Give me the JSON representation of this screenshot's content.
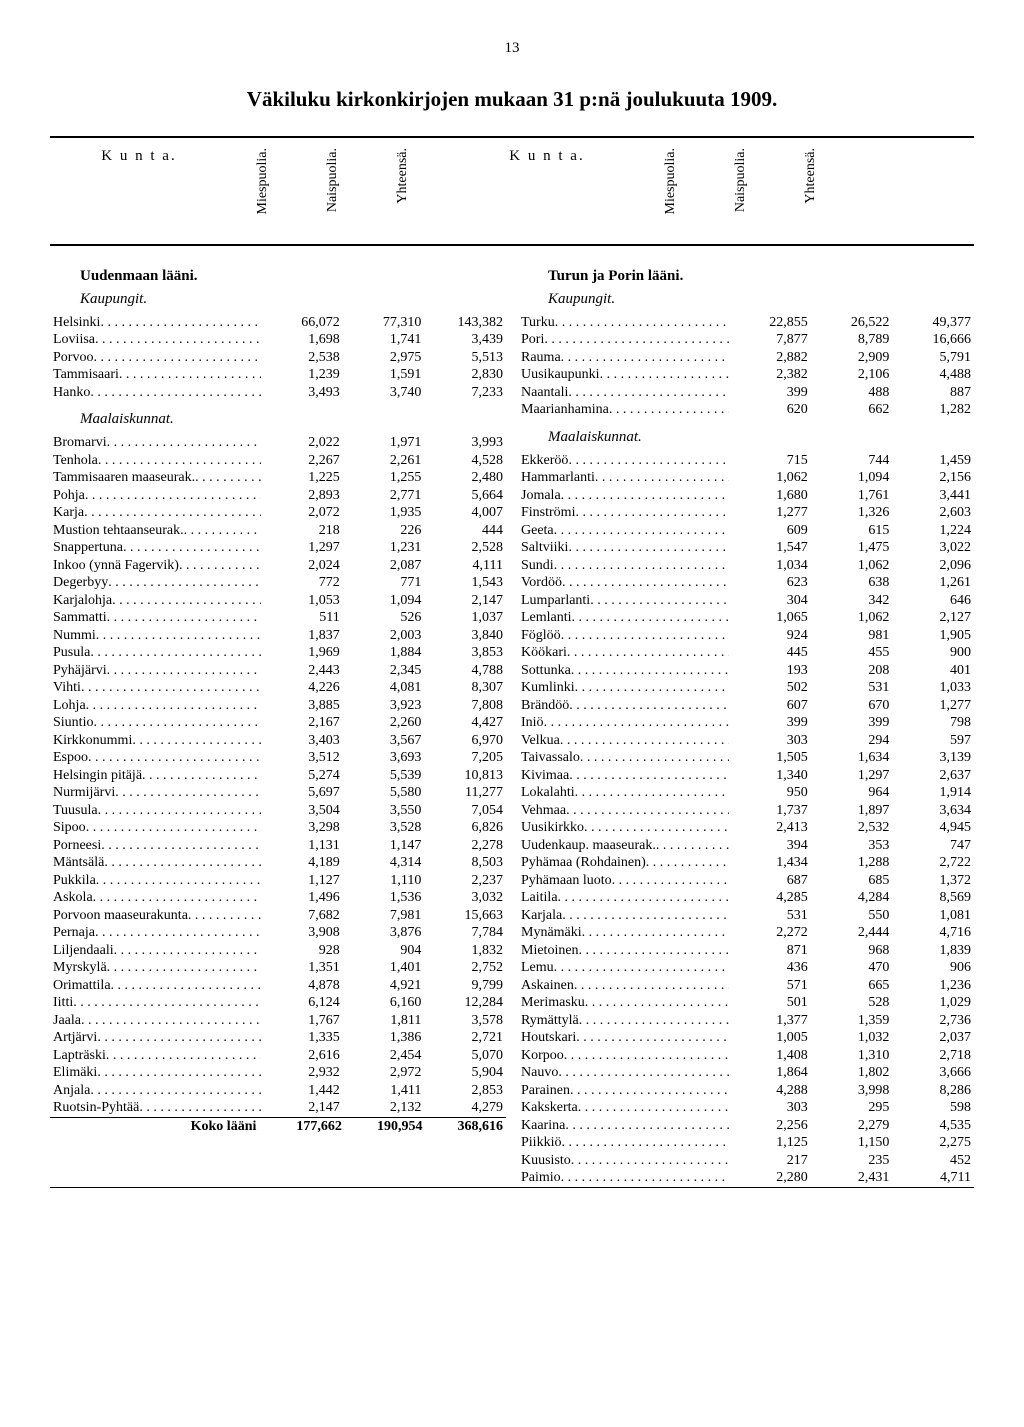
{
  "page_number": "13",
  "title": "Väkiluku kirkonkirjojen mukaan 31 p:nä joulukuuta 1909.",
  "headers": {
    "kunta": "K u n t a.",
    "mies": "Miespuolia.",
    "nais": "Naispuolia.",
    "yht": "Yhteensä."
  },
  "total_label": "Koko lääni",
  "left": {
    "province": "Uudenmaan lääni.",
    "kaupungit_label": "Kaupungit.",
    "maalaiskunnat_label": "Maalaiskunnat.",
    "kaupungit": [
      [
        "Helsinki",
        "66,072",
        "77,310",
        "143,382"
      ],
      [
        "Loviisa",
        "1,698",
        "1,741",
        "3,439"
      ],
      [
        "Porvoo",
        "2,538",
        "2,975",
        "5,513"
      ],
      [
        "Tammisaari",
        "1,239",
        "1,591",
        "2,830"
      ],
      [
        "Hanko",
        "3,493",
        "3,740",
        "7,233"
      ]
    ],
    "maalaiskunnat": [
      [
        "Bromarvi",
        "2,022",
        "1,971",
        "3,993"
      ],
      [
        "Tenhola",
        "2,267",
        "2,261",
        "4,528"
      ],
      [
        "Tammisaaren maaseurak.",
        "1,225",
        "1,255",
        "2,480"
      ],
      [
        "Pohja",
        "2,893",
        "2,771",
        "5,664"
      ],
      [
        "Karja",
        "2,072",
        "1,935",
        "4,007"
      ],
      [
        "Mustion tehtaanseurak.",
        "218",
        "226",
        "444"
      ],
      [
        "Snappertuna",
        "1,297",
        "1,231",
        "2,528"
      ],
      [
        "Inkoo (ynnä Fagervik)",
        "2,024",
        "2,087",
        "4,111"
      ],
      [
        "Degerbyy",
        "772",
        "771",
        "1,543"
      ],
      [
        "Karjalohja",
        "1,053",
        "1,094",
        "2,147"
      ],
      [
        "Sammatti",
        "511",
        "526",
        "1,037"
      ],
      [
        "Nummi",
        "1,837",
        "2,003",
        "3,840"
      ],
      [
        "Pusula",
        "1,969",
        "1,884",
        "3,853"
      ],
      [
        "Pyhäjärvi",
        "2,443",
        "2,345",
        "4,788"
      ],
      [
        "Vihti",
        "4,226",
        "4,081",
        "8,307"
      ],
      [
        "Lohja",
        "3,885",
        "3,923",
        "7,808"
      ],
      [
        "Siuntio",
        "2,167",
        "2,260",
        "4,427"
      ],
      [
        "Kirkkonummi",
        "3,403",
        "3,567",
        "6,970"
      ],
      [
        "Espoo",
        "3,512",
        "3,693",
        "7,205"
      ],
      [
        "Helsingin pitäjä",
        "5,274",
        "5,539",
        "10,813"
      ],
      [
        "Nurmijärvi",
        "5,697",
        "5,580",
        "11,277"
      ],
      [
        "Tuusula",
        "3,504",
        "3,550",
        "7,054"
      ],
      [
        "Sipoo",
        "3,298",
        "3,528",
        "6,826"
      ],
      [
        "Porneesi",
        "1,131",
        "1,147",
        "2,278"
      ],
      [
        "Mäntsälä",
        "4,189",
        "4,314",
        "8,503"
      ],
      [
        "Pukkila",
        "1,127",
        "1,110",
        "2,237"
      ],
      [
        "Askola",
        "1,496",
        "1,536",
        "3,032"
      ],
      [
        "Porvoon maaseurakunta",
        "7,682",
        "7,981",
        "15,663"
      ],
      [
        "Pernaja",
        "3,908",
        "3,876",
        "7,784"
      ],
      [
        "Liljendaali",
        "928",
        "904",
        "1,832"
      ],
      [
        "Myrskylä",
        "1,351",
        "1,401",
        "2,752"
      ],
      [
        "Orimattila",
        "4,878",
        "4,921",
        "9,799"
      ],
      [
        "Iitti",
        "6,124",
        "6,160",
        "12,284"
      ],
      [
        "Jaala",
        "1,767",
        "1,811",
        "3,578"
      ],
      [
        "Artjärvi",
        "1,335",
        "1,386",
        "2,721"
      ],
      [
        "Lapträski",
        "2,616",
        "2,454",
        "5,070"
      ],
      [
        "Elimäki",
        "2,932",
        "2,972",
        "5,904"
      ],
      [
        "Anjala",
        "1,442",
        "1,411",
        "2,853"
      ],
      [
        "Ruotsin-Pyhtää",
        "2,147",
        "2,132",
        "4,279"
      ]
    ],
    "total": [
      "177,662",
      "190,954",
      "368,616"
    ]
  },
  "right": {
    "province": "Turun ja Porin lääni.",
    "kaupungit_label": "Kaupungit.",
    "maalaiskunnat_label": "Maalaiskunnat.",
    "kaupungit": [
      [
        "Turku",
        "22,855",
        "26,522",
        "49,377"
      ],
      [
        "Pori",
        "7,877",
        "8,789",
        "16,666"
      ],
      [
        "Rauma",
        "2,882",
        "2,909",
        "5,791"
      ],
      [
        "Uusikaupunki",
        "2,382",
        "2,106",
        "4,488"
      ],
      [
        "Naantali",
        "399",
        "488",
        "887"
      ],
      [
        "Maarianhamina",
        "620",
        "662",
        "1,282"
      ]
    ],
    "maalaiskunnat": [
      [
        "Ekkeröö",
        "715",
        "744",
        "1,459"
      ],
      [
        "Hammarlanti",
        "1,062",
        "1,094",
        "2,156"
      ],
      [
        "Jomala",
        "1,680",
        "1,761",
        "3,441"
      ],
      [
        "Finströmi",
        "1,277",
        "1,326",
        "2,603"
      ],
      [
        "Geeta",
        "609",
        "615",
        "1,224"
      ],
      [
        "Saltviiki",
        "1,547",
        "1,475",
        "3,022"
      ],
      [
        "Sundi",
        "1,034",
        "1,062",
        "2,096"
      ],
      [
        "Vordöö",
        "623",
        "638",
        "1,261"
      ],
      [
        "Lumparlanti",
        "304",
        "342",
        "646"
      ],
      [
        "Lemlanti",
        "1,065",
        "1,062",
        "2,127"
      ],
      [
        "Föglöö",
        "924",
        "981",
        "1,905"
      ],
      [
        "Köökari",
        "445",
        "455",
        "900"
      ],
      [
        "Sottunka",
        "193",
        "208",
        "401"
      ],
      [
        "Kumlinki",
        "502",
        "531",
        "1,033"
      ],
      [
        "Brändöö",
        "607",
        "670",
        "1,277"
      ],
      [
        "Iniö",
        "399",
        "399",
        "798"
      ],
      [
        "Velkua",
        "303",
        "294",
        "597"
      ],
      [
        "Taivassalo",
        "1,505",
        "1,634",
        "3,139"
      ],
      [
        "Kivimaa",
        "1,340",
        "1,297",
        "2,637"
      ],
      [
        "Lokalahti",
        "950",
        "964",
        "1,914"
      ],
      [
        "Vehmaa",
        "1,737",
        "1,897",
        "3,634"
      ],
      [
        "Uusikirkko",
        "2,413",
        "2,532",
        "4,945"
      ],
      [
        "Uudenkaup. maaseurak.",
        "394",
        "353",
        "747"
      ],
      [
        "Pyhämaa (Rohdainen)",
        "1,434",
        "1,288",
        "2,722"
      ],
      [
        "Pyhämaan luoto",
        "687",
        "685",
        "1,372"
      ],
      [
        "Laitila",
        "4,285",
        "4,284",
        "8,569"
      ],
      [
        "Karjala",
        "531",
        "550",
        "1,081"
      ],
      [
        "Mynämäki",
        "2,272",
        "2,444",
        "4,716"
      ],
      [
        "Mietoinen",
        "871",
        "968",
        "1,839"
      ],
      [
        "Lemu",
        "436",
        "470",
        "906"
      ],
      [
        "Askainen",
        "571",
        "665",
        "1,236"
      ],
      [
        "Merimasku",
        "501",
        "528",
        "1,029"
      ],
      [
        "Rymättylä",
        "1,377",
        "1,359",
        "2,736"
      ],
      [
        "Houtskari",
        "1,005",
        "1,032",
        "2,037"
      ],
      [
        "Korpoo",
        "1,408",
        "1,310",
        "2,718"
      ],
      [
        "Nauvo",
        "1,864",
        "1,802",
        "3,666"
      ],
      [
        "Parainen",
        "4,288",
        "3,998",
        "8,286"
      ],
      [
        "Kakskerta",
        "303",
        "295",
        "598"
      ],
      [
        "Kaarina",
        "2,256",
        "2,279",
        "4,535"
      ],
      [
        "Piikkiö",
        "1,125",
        "1,150",
        "2,275"
      ],
      [
        "Kuusisto",
        "217",
        "235",
        "452"
      ],
      [
        "Paimio",
        "2,280",
        "2,431",
        "4,711"
      ]
    ]
  }
}
